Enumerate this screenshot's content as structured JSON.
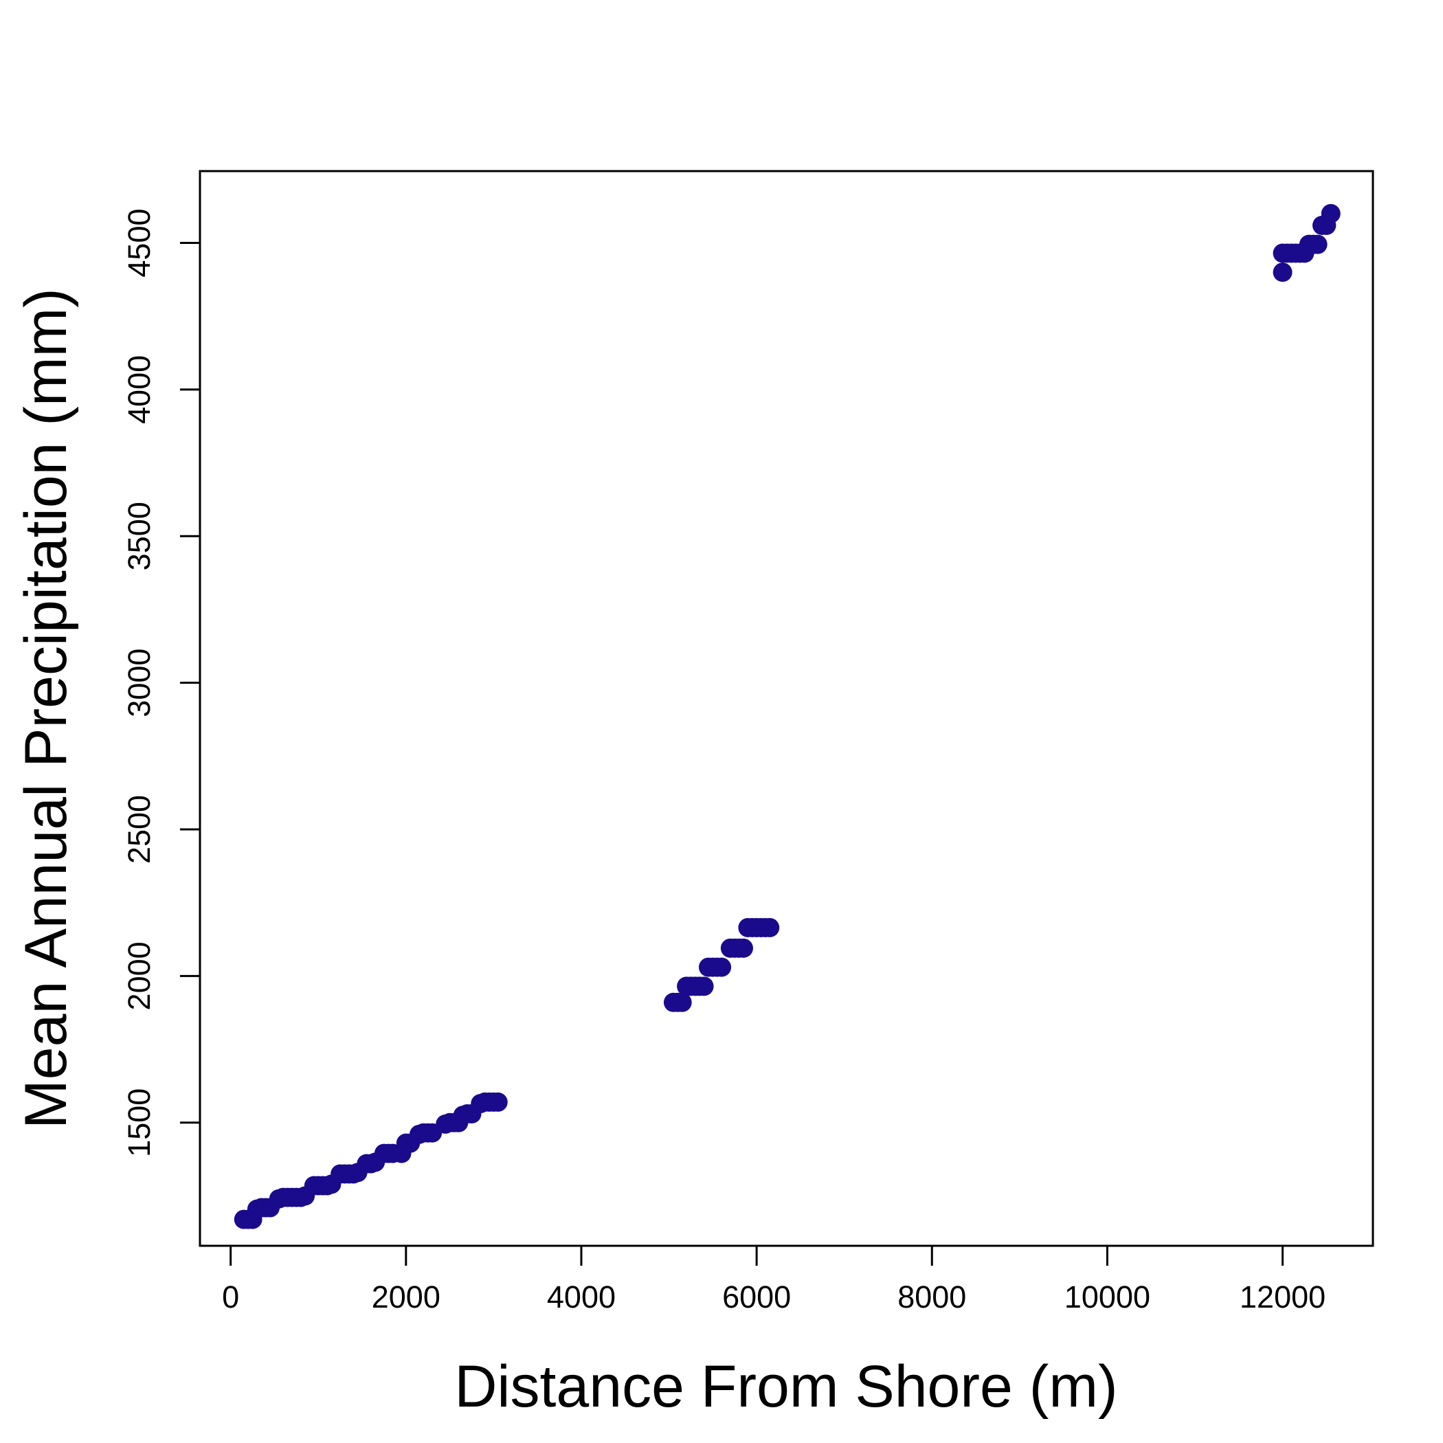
{
  "chart_data": {
    "type": "scatter",
    "xlabel": "Distance From Shore (m)",
    "ylabel": "Mean Annual Precipitation (mm)",
    "xlim": [
      -350,
      13030
    ],
    "ylim": [
      1080,
      4745
    ],
    "x_ticks": [
      0,
      2000,
      4000,
      6000,
      8000,
      10000,
      12000
    ],
    "y_ticks": [
      1500,
      2000,
      2500,
      3000,
      3500,
      4000,
      4500
    ],
    "grid": false,
    "legend": "none",
    "marker_color": "#1a0a8c",
    "series": [
      {
        "x": [
          150,
          200,
          250,
          300,
          350,
          400,
          450,
          550,
          600,
          650,
          700,
          750,
          800,
          850,
          950,
          1000,
          1050,
          1100,
          1150,
          1250,
          1300,
          1350,
          1400,
          1450,
          1550,
          1600,
          1650,
          1750,
          1800,
          1850,
          1950,
          2000,
          2050,
          2150,
          2200,
          2250,
          2300,
          2450,
          2500,
          2550,
          2600,
          2650,
          2700,
          2750,
          2850,
          2900,
          2950,
          3000,
          3050,
          5050,
          5100,
          5150,
          5200,
          5250,
          5300,
          5350,
          5400,
          5450,
          5500,
          5550,
          5600,
          5700,
          5750,
          5800,
          5850,
          5900,
          5950,
          6000,
          6050,
          6100,
          6150,
          12000,
          12000,
          12050,
          12100,
          12150,
          12200,
          12250,
          12300,
          12350,
          12400,
          12450,
          12500,
          12550
        ],
        "y": [
          1170,
          1170,
          1170,
          1205,
          1210,
          1210,
          1210,
          1240,
          1245,
          1245,
          1245,
          1245,
          1245,
          1250,
          1285,
          1285,
          1285,
          1285,
          1290,
          1325,
          1325,
          1325,
          1325,
          1330,
          1360,
          1360,
          1365,
          1395,
          1395,
          1395,
          1395,
          1430,
          1430,
          1460,
          1465,
          1465,
          1465,
          1495,
          1500,
          1500,
          1500,
          1525,
          1530,
          1530,
          1565,
          1570,
          1570,
          1570,
          1570,
          1910,
          1910,
          1910,
          1965,
          1965,
          1965,
          1965,
          1965,
          2030,
          2030,
          2030,
          2030,
          2095,
          2095,
          2095,
          2095,
          2165,
          2165,
          2165,
          2165,
          2165,
          2165,
          4400,
          4465,
          4465,
          4465,
          4465,
          4465,
          4465,
          4495,
          4495,
          4495,
          4560,
          4560,
          4600
        ]
      }
    ]
  }
}
